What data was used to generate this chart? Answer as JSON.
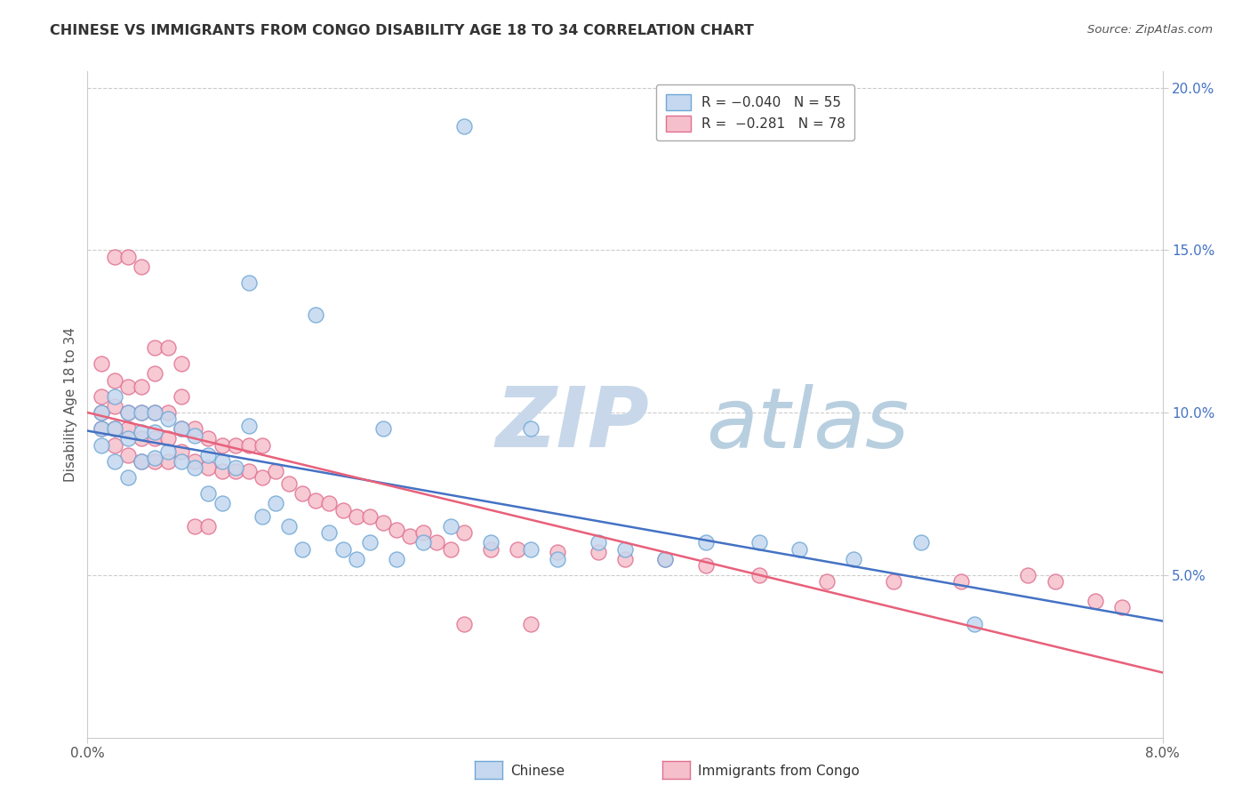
{
  "title": "CHINESE VS IMMIGRANTS FROM CONGO DISABILITY AGE 18 TO 34 CORRELATION CHART",
  "source": "Source: ZipAtlas.com",
  "ylabel": "Disability Age 18 to 34",
  "color_chinese": "#c5d8ef",
  "color_chinese_edge": "#6fa8d6",
  "color_congo": "#f5c0cc",
  "color_congo_edge": "#e07090",
  "color_chinese_line": "#4472c4",
  "color_congo_line": "#e8607a",
  "color_right_axis": "#4472c4",
  "xmin": 0.0,
  "xmax": 0.08,
  "ymin": 0.0,
  "ymax": 0.205,
  "yticks_right": [
    0.05,
    0.1,
    0.15,
    0.2
  ],
  "ytick_labels_right": [
    "5.0%",
    "10.0%",
    "15.0%",
    "20.0%"
  ],
  "watermark_zip": "ZIP",
  "watermark_atlas": "atlas",
  "chinese_scatter_x": [
    0.001,
    0.001,
    0.001,
    0.002,
    0.002,
    0.002,
    0.003,
    0.003,
    0.003,
    0.004,
    0.004,
    0.004,
    0.005,
    0.005,
    0.005,
    0.006,
    0.006,
    0.007,
    0.007,
    0.008,
    0.008,
    0.009,
    0.009,
    0.01,
    0.01,
    0.011,
    0.012,
    0.013,
    0.014,
    0.015,
    0.016,
    0.018,
    0.019,
    0.02,
    0.021,
    0.023,
    0.025,
    0.027,
    0.03,
    0.033,
    0.035,
    0.038,
    0.04,
    0.043,
    0.046,
    0.05,
    0.053,
    0.057,
    0.062,
    0.066,
    0.028,
    0.033,
    0.017,
    0.022,
    0.012
  ],
  "chinese_scatter_y": [
    0.09,
    0.095,
    0.1,
    0.085,
    0.095,
    0.105,
    0.08,
    0.092,
    0.1,
    0.085,
    0.094,
    0.1,
    0.086,
    0.094,
    0.1,
    0.088,
    0.098,
    0.085,
    0.095,
    0.083,
    0.093,
    0.087,
    0.075,
    0.085,
    0.072,
    0.083,
    0.14,
    0.068,
    0.072,
    0.065,
    0.058,
    0.063,
    0.058,
    0.055,
    0.06,
    0.055,
    0.06,
    0.065,
    0.06,
    0.058,
    0.055,
    0.06,
    0.058,
    0.055,
    0.06,
    0.06,
    0.058,
    0.055,
    0.06,
    0.035,
    0.188,
    0.095,
    0.13,
    0.095,
    0.096
  ],
  "congo_scatter_x": [
    0.001,
    0.001,
    0.001,
    0.001,
    0.002,
    0.002,
    0.002,
    0.002,
    0.003,
    0.003,
    0.003,
    0.003,
    0.004,
    0.004,
    0.004,
    0.004,
    0.005,
    0.005,
    0.005,
    0.005,
    0.006,
    0.006,
    0.006,
    0.007,
    0.007,
    0.007,
    0.008,
    0.008,
    0.009,
    0.009,
    0.01,
    0.01,
    0.011,
    0.011,
    0.012,
    0.012,
    0.013,
    0.013,
    0.014,
    0.015,
    0.016,
    0.017,
    0.018,
    0.019,
    0.02,
    0.021,
    0.022,
    0.023,
    0.024,
    0.025,
    0.026,
    0.027,
    0.028,
    0.03,
    0.032,
    0.035,
    0.038,
    0.04,
    0.043,
    0.046,
    0.05,
    0.055,
    0.06,
    0.065,
    0.07,
    0.072,
    0.075,
    0.077,
    0.028,
    0.033,
    0.002,
    0.003,
    0.004,
    0.005,
    0.006,
    0.007,
    0.008,
    0.009
  ],
  "congo_scatter_y": [
    0.095,
    0.1,
    0.105,
    0.115,
    0.09,
    0.095,
    0.102,
    0.11,
    0.087,
    0.095,
    0.1,
    0.108,
    0.085,
    0.092,
    0.1,
    0.108,
    0.085,
    0.092,
    0.1,
    0.112,
    0.085,
    0.092,
    0.1,
    0.088,
    0.095,
    0.105,
    0.085,
    0.095,
    0.083,
    0.092,
    0.082,
    0.09,
    0.082,
    0.09,
    0.082,
    0.09,
    0.08,
    0.09,
    0.082,
    0.078,
    0.075,
    0.073,
    0.072,
    0.07,
    0.068,
    0.068,
    0.066,
    0.064,
    0.062,
    0.063,
    0.06,
    0.058,
    0.063,
    0.058,
    0.058,
    0.057,
    0.057,
    0.055,
    0.055,
    0.053,
    0.05,
    0.048,
    0.048,
    0.048,
    0.05,
    0.048,
    0.042,
    0.04,
    0.035,
    0.035,
    0.148,
    0.148,
    0.145,
    0.12,
    0.12,
    0.115,
    0.065,
    0.065
  ]
}
